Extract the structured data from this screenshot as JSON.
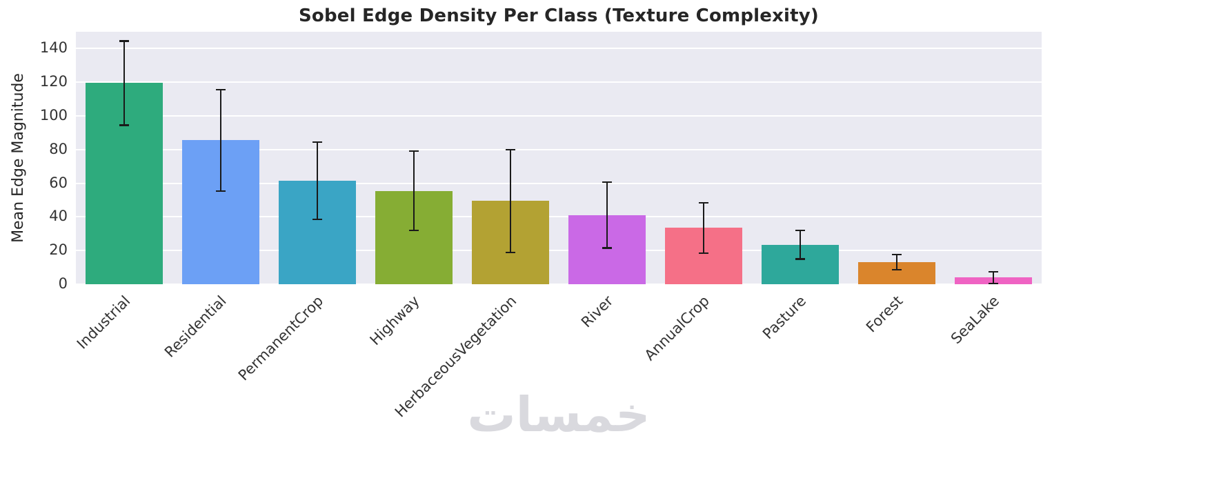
{
  "chart_data": {
    "type": "bar",
    "title": "Sobel Edge Density Per Class (Texture Complexity)",
    "ylabel": "Mean Edge Magnitude",
    "xlabel": "",
    "categories": [
      "Industrial",
      "Residential",
      "PermanentCrop",
      "Highway",
      "HerbaceousVegetation",
      "River",
      "AnnualCrop",
      "Pasture",
      "Forest",
      "SeaLake"
    ],
    "values": [
      119.5,
      85.5,
      61.5,
      55.5,
      49.5,
      41,
      33.5,
      23.5,
      13,
      4
    ],
    "errors": [
      25,
      30,
      23,
      23.5,
      30.5,
      19.5,
      15,
      8.5,
      4.5,
      3.5
    ],
    "bar_colors": [
      "#2eab7d",
      "#6ca0f5",
      "#3aa5c5",
      "#86ad34",
      "#b3a233",
      "#ca69e6",
      "#f57087",
      "#2ea89b",
      "#da852c",
      "#ef63c3"
    ],
    "yticks": [
      0,
      20,
      40,
      60,
      80,
      100,
      120,
      140
    ],
    "ylim": [
      0,
      150
    ],
    "legend": null,
    "grid": "horizontal",
    "error_bar_color": "#1a1a1a"
  },
  "watermark": "خمسات",
  "colors": {
    "figure_bg": "#ffffff",
    "plot_bg": "#eaeaf2",
    "grid": "#ffffff",
    "tick_text": "#333333",
    "title_text": "#262626"
  }
}
